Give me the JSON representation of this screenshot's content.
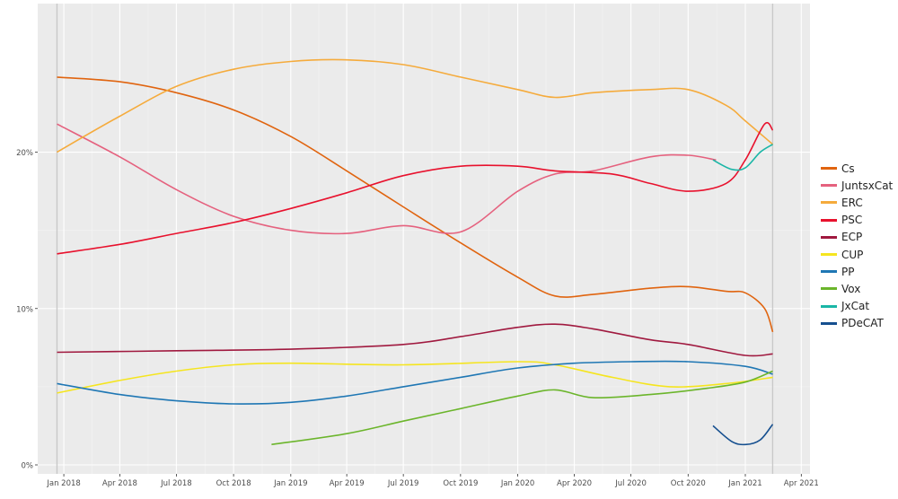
{
  "chart_data": {
    "type": "line",
    "title": "",
    "xlabel": "",
    "ylabel": "",
    "x_range": [
      "2017-11-20",
      "2021-04-15"
    ],
    "ylim": [
      0,
      29.5
    ],
    "x_ticks": [
      {
        "date": "2018-01-01",
        "label": "Jan 2018"
      },
      {
        "date": "2018-04-01",
        "label": "Apr 2018"
      },
      {
        "date": "2018-07-01",
        "label": "Jul 2018"
      },
      {
        "date": "2018-10-01",
        "label": "Oct 2018"
      },
      {
        "date": "2019-01-01",
        "label": "Jan 2019"
      },
      {
        "date": "2019-04-01",
        "label": "Apr 2019"
      },
      {
        "date": "2019-07-01",
        "label": "Jul 2019"
      },
      {
        "date": "2019-10-01",
        "label": "Oct 2019"
      },
      {
        "date": "2020-01-01",
        "label": "Jan 2020"
      },
      {
        "date": "2020-04-01",
        "label": "Apr 2020"
      },
      {
        "date": "2020-07-01",
        "label": "Jul 2020"
      },
      {
        "date": "2020-10-01",
        "label": "Oct 2020"
      },
      {
        "date": "2021-01-01",
        "label": "Jan 2021"
      },
      {
        "date": "2021-04-01",
        "label": "Apr 2021"
      }
    ],
    "y_ticks": [
      {
        "value": 0,
        "label": "0%"
      },
      {
        "value": 10,
        "label": "10%"
      },
      {
        "value": 20,
        "label": "20%"
      }
    ],
    "reference_dates": [
      "2017-12-21",
      "2021-02-14"
    ],
    "grid": true,
    "legend_position": "right",
    "series": [
      {
        "name": "Cs",
        "color": "#e0640f",
        "points": [
          [
            "2017-12-21",
            24.8
          ],
          [
            "2018-04-01",
            24.5
          ],
          [
            "2018-07-01",
            23.8
          ],
          [
            "2018-10-01",
            22.7
          ],
          [
            "2019-01-01",
            21.0
          ],
          [
            "2019-04-01",
            18.8
          ],
          [
            "2019-07-01",
            16.5
          ],
          [
            "2019-10-01",
            14.2
          ],
          [
            "2020-01-01",
            12.0
          ],
          [
            "2020-03-01",
            10.8
          ],
          [
            "2020-05-01",
            10.9
          ],
          [
            "2020-08-01",
            11.3
          ],
          [
            "2020-10-01",
            11.4
          ],
          [
            "2020-12-01",
            11.1
          ],
          [
            "2021-01-01",
            11.0
          ],
          [
            "2021-02-01",
            10.0
          ],
          [
            "2021-02-14",
            8.5
          ]
        ]
      },
      {
        "name": "JuntsxCat",
        "color": "#e5617e",
        "points": [
          [
            "2017-12-21",
            21.8
          ],
          [
            "2018-04-01",
            19.7
          ],
          [
            "2018-07-01",
            17.6
          ],
          [
            "2018-10-01",
            15.9
          ],
          [
            "2019-01-01",
            15.0
          ],
          [
            "2019-04-01",
            14.8
          ],
          [
            "2019-07-01",
            15.3
          ],
          [
            "2019-10-01",
            14.9
          ],
          [
            "2020-01-01",
            17.5
          ],
          [
            "2020-03-01",
            18.6
          ],
          [
            "2020-05-01",
            18.8
          ],
          [
            "2020-08-01",
            19.7
          ],
          [
            "2020-10-01",
            19.8
          ],
          [
            "2020-11-15",
            19.5
          ]
        ]
      },
      {
        "name": "ERC",
        "color": "#f5ab3c",
        "points": [
          [
            "2017-12-21",
            20.0
          ],
          [
            "2018-04-01",
            22.3
          ],
          [
            "2018-07-01",
            24.2
          ],
          [
            "2018-10-01",
            25.3
          ],
          [
            "2019-01-01",
            25.8
          ],
          [
            "2019-04-01",
            25.9
          ],
          [
            "2019-07-01",
            25.6
          ],
          [
            "2019-10-01",
            24.8
          ],
          [
            "2020-01-01",
            24.0
          ],
          [
            "2020-03-01",
            23.5
          ],
          [
            "2020-05-01",
            23.8
          ],
          [
            "2020-08-01",
            24.0
          ],
          [
            "2020-10-01",
            24.0
          ],
          [
            "2020-12-01",
            23.0
          ],
          [
            "2021-01-01",
            22.0
          ],
          [
            "2021-02-14",
            20.5
          ]
        ]
      },
      {
        "name": "PSC",
        "color": "#e8112d",
        "points": [
          [
            "2017-12-21",
            13.5
          ],
          [
            "2018-04-01",
            14.1
          ],
          [
            "2018-07-01",
            14.8
          ],
          [
            "2018-10-01",
            15.5
          ],
          [
            "2019-01-01",
            16.4
          ],
          [
            "2019-04-01",
            17.4
          ],
          [
            "2019-07-01",
            18.5
          ],
          [
            "2019-10-01",
            19.1
          ],
          [
            "2020-01-01",
            19.1
          ],
          [
            "2020-03-01",
            18.8
          ],
          [
            "2020-06-01",
            18.6
          ],
          [
            "2020-08-01",
            18.0
          ],
          [
            "2020-10-01",
            17.5
          ],
          [
            "2020-12-01",
            18.0
          ],
          [
            "2021-01-01",
            19.5
          ],
          [
            "2021-02-01",
            21.8
          ],
          [
            "2021-02-14",
            21.4
          ]
        ]
      },
      {
        "name": "ECP",
        "color": "#a0193f",
        "points": [
          [
            "2017-12-21",
            7.2
          ],
          [
            "2018-07-01",
            7.3
          ],
          [
            "2019-01-01",
            7.4
          ],
          [
            "2019-07-01",
            7.7
          ],
          [
            "2019-10-01",
            8.2
          ],
          [
            "2020-01-01",
            8.8
          ],
          [
            "2020-03-01",
            9.0
          ],
          [
            "2020-05-01",
            8.7
          ],
          [
            "2020-08-01",
            8.0
          ],
          [
            "2020-10-01",
            7.7
          ],
          [
            "2021-01-01",
            7.0
          ],
          [
            "2021-02-14",
            7.1
          ]
        ]
      },
      {
        "name": "CUP",
        "color": "#f5e51f",
        "points": [
          [
            "2017-12-21",
            4.6
          ],
          [
            "2018-04-01",
            5.4
          ],
          [
            "2018-07-01",
            6.0
          ],
          [
            "2018-10-01",
            6.4
          ],
          [
            "2019-01-01",
            6.5
          ],
          [
            "2019-07-01",
            6.4
          ],
          [
            "2020-01-01",
            6.6
          ],
          [
            "2020-03-01",
            6.4
          ],
          [
            "2020-06-01",
            5.6
          ],
          [
            "2020-09-01",
            5.0
          ],
          [
            "2020-12-01",
            5.2
          ],
          [
            "2021-02-14",
            5.6
          ]
        ]
      },
      {
        "name": "PP",
        "color": "#1f77b4",
        "points": [
          [
            "2017-12-21",
            5.2
          ],
          [
            "2018-04-01",
            4.5
          ],
          [
            "2018-07-01",
            4.1
          ],
          [
            "2018-10-01",
            3.9
          ],
          [
            "2019-01-01",
            4.0
          ],
          [
            "2019-04-01",
            4.4
          ],
          [
            "2019-07-01",
            5.0
          ],
          [
            "2019-10-01",
            5.6
          ],
          [
            "2020-01-01",
            6.2
          ],
          [
            "2020-04-01",
            6.5
          ],
          [
            "2020-07-01",
            6.6
          ],
          [
            "2020-10-01",
            6.6
          ],
          [
            "2021-01-01",
            6.3
          ],
          [
            "2021-02-14",
            5.8
          ]
        ]
      },
      {
        "name": "Vox",
        "color": "#6bb52b",
        "points": [
          [
            "2018-12-01",
            1.3
          ],
          [
            "2019-04-01",
            2.0
          ],
          [
            "2019-07-01",
            2.8
          ],
          [
            "2019-10-01",
            3.6
          ],
          [
            "2020-01-01",
            4.4
          ],
          [
            "2020-03-01",
            4.8
          ],
          [
            "2020-05-01",
            4.3
          ],
          [
            "2020-08-01",
            4.5
          ],
          [
            "2020-11-01",
            4.9
          ],
          [
            "2021-01-01",
            5.3
          ],
          [
            "2021-02-14",
            6.0
          ]
        ]
      },
      {
        "name": "JxCat",
        "color": "#1ab6a6",
        "points": [
          [
            "2020-11-10",
            19.5
          ],
          [
            "2020-12-10",
            18.9
          ],
          [
            "2021-01-01",
            19.0
          ],
          [
            "2021-01-25",
            20.0
          ],
          [
            "2021-02-14",
            20.5
          ]
        ]
      },
      {
        "name": "PDeCAT",
        "color": "#154f8f",
        "points": [
          [
            "2020-11-10",
            2.5
          ],
          [
            "2020-12-10",
            1.5
          ],
          [
            "2021-01-01",
            1.3
          ],
          [
            "2021-01-25",
            1.6
          ],
          [
            "2021-02-14",
            2.6
          ]
        ]
      }
    ]
  }
}
